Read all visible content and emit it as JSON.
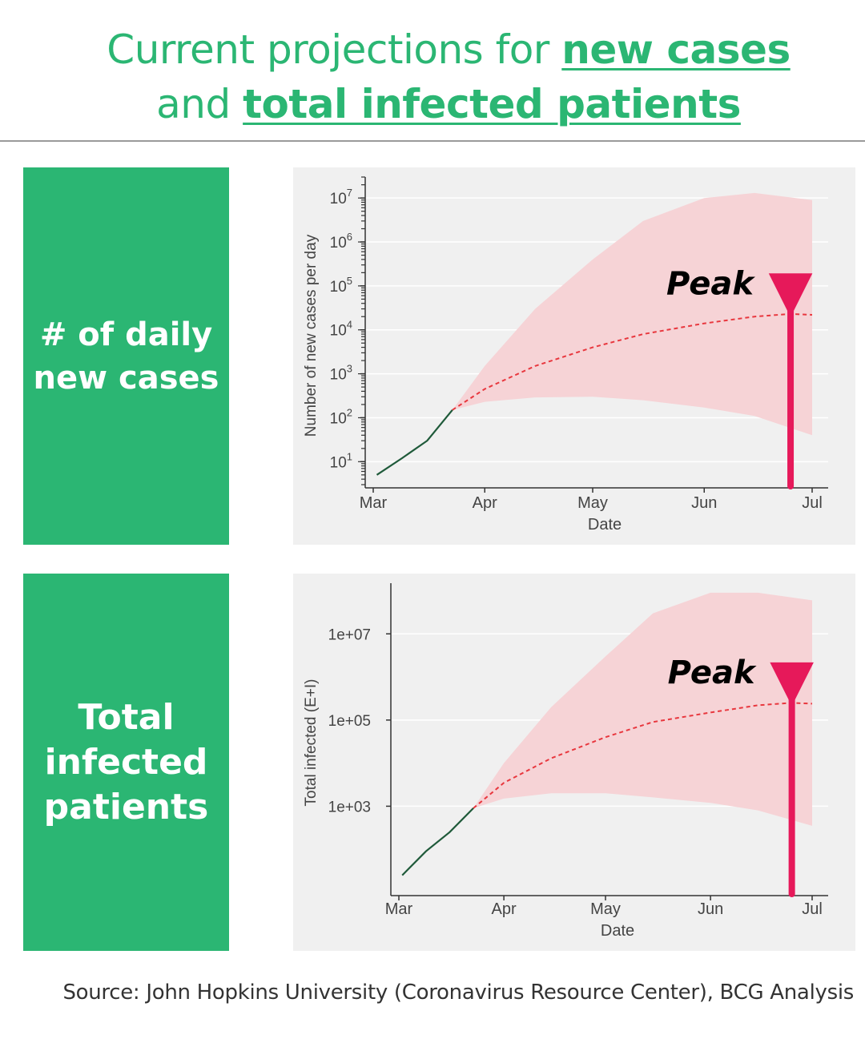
{
  "title": {
    "line1_prefix": "Current projections for",
    "line1_highlight": "new cases",
    "line2_prefix": "and",
    "line2_highlight": "total infected patients"
  },
  "sections": [
    {
      "label": "# of daily\nnew cases"
    },
    {
      "label": "Total\ninfected\npatients"
    }
  ],
  "source": "Source: John Hopkins University (Coronavirus Resource Center), BCG Analysis",
  "colors": {
    "green": "#2bb673",
    "band": "#f6d3d6",
    "projection": "#e8373e",
    "observed": "#1f5a3a",
    "peak": "#e6195a"
  },
  "chart_data": [
    {
      "type": "area",
      "ylabel": "Number of new cases per day",
      "xlabel": "Date",
      "yscale": "log",
      "ylim": [
        3,
        30000000
      ],
      "x_ticks": [
        "Mar",
        "Apr",
        "May",
        "Jun",
        "Jul"
      ],
      "y_ticks": [
        {
          "base": "10",
          "exp": "1",
          "value": 10
        },
        {
          "base": "10",
          "exp": "2",
          "value": 100
        },
        {
          "base": "10",
          "exp": "3",
          "value": 1000
        },
        {
          "base": "10",
          "exp": "4",
          "value": 10000
        },
        {
          "base": "10",
          "exp": "5",
          "value": 100000
        },
        {
          "base": "10",
          "exp": "6",
          "value": 1000000
        },
        {
          "base": "10",
          "exp": "7",
          "value": 10000000
        }
      ],
      "series": [
        {
          "role": "observed",
          "x": [
            "Mar 2",
            "Mar 9",
            "Mar 16",
            "Mar 23"
          ],
          "y": [
            5,
            12,
            30,
            150
          ]
        },
        {
          "role": "projected",
          "x": [
            "Mar 23",
            "Apr 1",
            "Apr 15",
            "May 1",
            "May 15",
            "Jun 1",
            "Jun 15",
            "Jun 25",
            "Jul 1"
          ],
          "y": [
            150,
            450,
            1500,
            4000,
            8000,
            14000,
            20000,
            23000,
            22000
          ]
        },
        {
          "role": "band_upper",
          "x": [
            "Mar 23",
            "Apr 1",
            "Apr 15",
            "May 1",
            "May 15",
            "Jun 1",
            "Jun 15",
            "Jul 1"
          ],
          "y": [
            150,
            1500,
            30000,
            400000,
            3000000,
            10000000,
            13000000,
            9000000
          ]
        },
        {
          "role": "band_lower",
          "x": [
            "Mar 23",
            "Apr 1",
            "Apr 15",
            "May 1",
            "May 15",
            "Jun 1",
            "Jun 15",
            "Jul 1"
          ],
          "y": [
            150,
            230,
            290,
            300,
            250,
            170,
            110,
            40
          ]
        }
      ],
      "annotation": {
        "text": "Peak",
        "x": "Jun 25",
        "y": 23000
      }
    },
    {
      "type": "area",
      "ylabel": "Total infected (E+I)",
      "xlabel": "Date",
      "yscale": "log",
      "ylim": [
        10,
        150000000
      ],
      "x_ticks": [
        "Mar",
        "Apr",
        "May",
        "Jun",
        "Jul"
      ],
      "y_ticks": [
        {
          "label": "1e+03",
          "value": 1000
        },
        {
          "label": "1e+05",
          "value": 100000
        },
        {
          "label": "1e+07",
          "value": 10000000
        }
      ],
      "series": [
        {
          "role": "observed",
          "x": [
            "Mar 2",
            "Mar 9",
            "Mar 16",
            "Mar 23"
          ],
          "y": [
            25,
            90,
            250,
            900
          ]
        },
        {
          "role": "projected",
          "x": [
            "Mar 23",
            "Apr 1",
            "Apr 15",
            "May 1",
            "May 15",
            "Jun 1",
            "Jun 15",
            "Jun 25",
            "Jul 1"
          ],
          "y": [
            900,
            3500,
            13000,
            40000,
            90000,
            150000,
            220000,
            250000,
            240000
          ]
        },
        {
          "role": "band_upper",
          "x": [
            "Mar 23",
            "Apr 1",
            "Apr 15",
            "May 1",
            "May 15",
            "Jun 1",
            "Jun 15",
            "Jul 1"
          ],
          "y": [
            900,
            10000,
            200000,
            3000000,
            30000000,
            90000000,
            90000000,
            60000000
          ]
        },
        {
          "role": "band_lower",
          "x": [
            "Mar 23",
            "Apr 1",
            "Apr 15",
            "May 1",
            "May 15",
            "Jun 1",
            "Jun 15",
            "Jul 1"
          ],
          "y": [
            900,
            1500,
            2000,
            2000,
            1600,
            1200,
            800,
            350
          ]
        }
      ],
      "annotation": {
        "text": "Peak",
        "x": "Jun 25",
        "y": 250000
      }
    }
  ]
}
